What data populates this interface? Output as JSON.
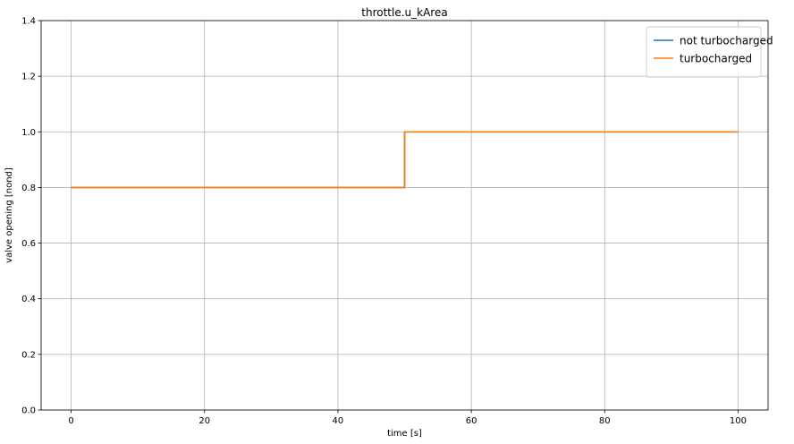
{
  "chart_data": {
    "type": "line",
    "title": "throttle.u_kArea",
    "xlabel": "time [s]",
    "ylabel": "valve opening [nond]",
    "xlim": [
      -4.5,
      104.5
    ],
    "ylim": [
      0.0,
      1.4
    ],
    "xticks": [
      0,
      20,
      40,
      60,
      80,
      100
    ],
    "yticks": [
      0.0,
      0.2,
      0.4,
      0.6,
      0.8,
      1.0,
      1.2,
      1.4
    ],
    "xtick_labels": [
      "0",
      "20",
      "40",
      "60",
      "80",
      "100"
    ],
    "ytick_labels": [
      "0.0",
      "0.2",
      "0.4",
      "0.6",
      "0.8",
      "1.0",
      "1.2",
      "1.4"
    ],
    "grid": true,
    "legend_position": "top-right",
    "series": [
      {
        "name": "not turbocharged",
        "color": "#1f77b4",
        "x": [
          0,
          50,
          50,
          100
        ],
        "y": [
          0.8,
          0.8,
          1.0,
          1.0
        ]
      },
      {
        "name": "turbocharged",
        "color": "#ff7f0e",
        "x": [
          0,
          50,
          50,
          100
        ],
        "y": [
          0.8,
          0.8,
          1.0,
          1.0
        ]
      }
    ]
  }
}
